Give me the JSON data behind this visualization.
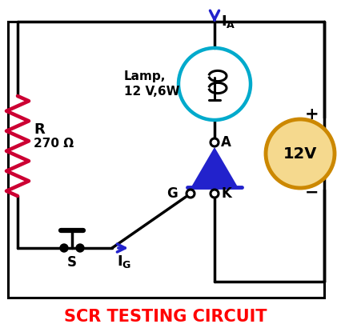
{
  "title": "SCR TESTING CIRCUIT",
  "title_color": "red",
  "title_fontsize": 15,
  "bg_color": "#ffffff",
  "circuit_line_color": "black",
  "resistor_color": "#cc0033",
  "blue_color": "#2222cc",
  "lamp_circle_color": "#00aacc",
  "voltage_circle_color": "#cc8800",
  "voltage_fill_color": "#f5d98e",
  "lamp_label": "Lamp,\n12 V,6W",
  "resistor_label_R": "R",
  "resistor_label_val": "270 Ω",
  "voltage_label": "12V",
  "switch_label": "S",
  "node_A_label": "A",
  "node_K_label": "K",
  "node_G_label": "G",
  "plus_label": "+",
  "minus_label": "−",
  "lw": 2.5
}
